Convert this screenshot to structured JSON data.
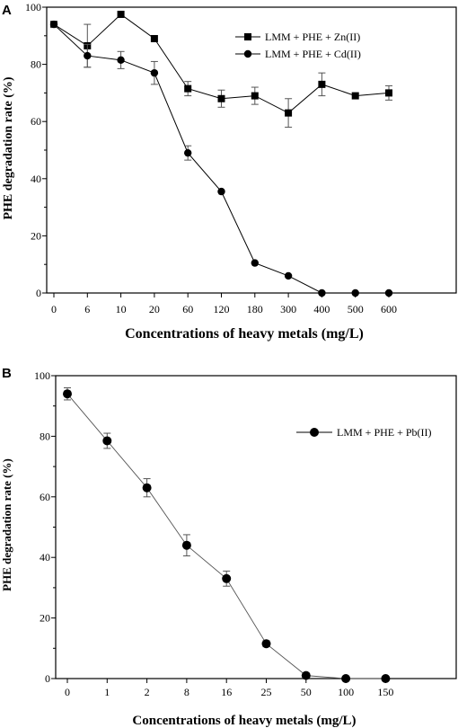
{
  "chart_data": [
    {
      "panel": "A",
      "type": "line",
      "xlabel": "Concentrations of heavy metals (mg/L)",
      "ylabel": "PHE degradation rate (%)",
      "categories": [
        "0",
        "6",
        "10",
        "20",
        "60",
        "120",
        "180",
        "300",
        "400",
        "500",
        "600"
      ],
      "ylim": [
        0,
        100
      ],
      "yticks": [
        0,
        20,
        40,
        60,
        80,
        100
      ],
      "legend_position": "top-right",
      "series": [
        {
          "name": "LMM + PHE + Zn(II)",
          "marker": "square",
          "values": [
            94,
            86.5,
            97.5,
            89,
            71.5,
            68,
            69,
            63,
            73,
            69,
            70
          ],
          "errors": [
            1,
            7.5,
            0,
            0,
            2.5,
            3,
            3,
            5,
            4,
            0,
            2.5
          ]
        },
        {
          "name": "LMM + PHE + Cd(II)",
          "marker": "circle",
          "values": [
            94,
            83,
            81.5,
            77,
            49,
            35.5,
            10.5,
            6,
            0,
            0,
            0
          ],
          "errors": [
            1,
            4,
            3,
            4,
            2.5,
            0,
            0,
            0,
            0,
            0,
            0
          ]
        }
      ]
    },
    {
      "panel": "B",
      "type": "line",
      "xlabel": "Concentrations of heavy metals (mg/L)",
      "ylabel": "PHE degradation rate (%)",
      "categories": [
        "0",
        "1",
        "2",
        "8",
        "16",
        "25",
        "50",
        "100",
        "150"
      ],
      "ylim": [
        0,
        100
      ],
      "yticks": [
        0,
        20,
        40,
        60,
        80,
        100
      ],
      "legend_position": "top-right",
      "series": [
        {
          "name": "LMM + PHE + Pb(II)",
          "marker": "circle",
          "values": [
            94,
            78.5,
            63,
            44,
            33,
            11.5,
            1,
            0,
            0
          ],
          "errors": [
            2,
            2.5,
            3,
            3.5,
            2.5,
            1,
            0,
            0,
            0
          ]
        }
      ]
    }
  ]
}
